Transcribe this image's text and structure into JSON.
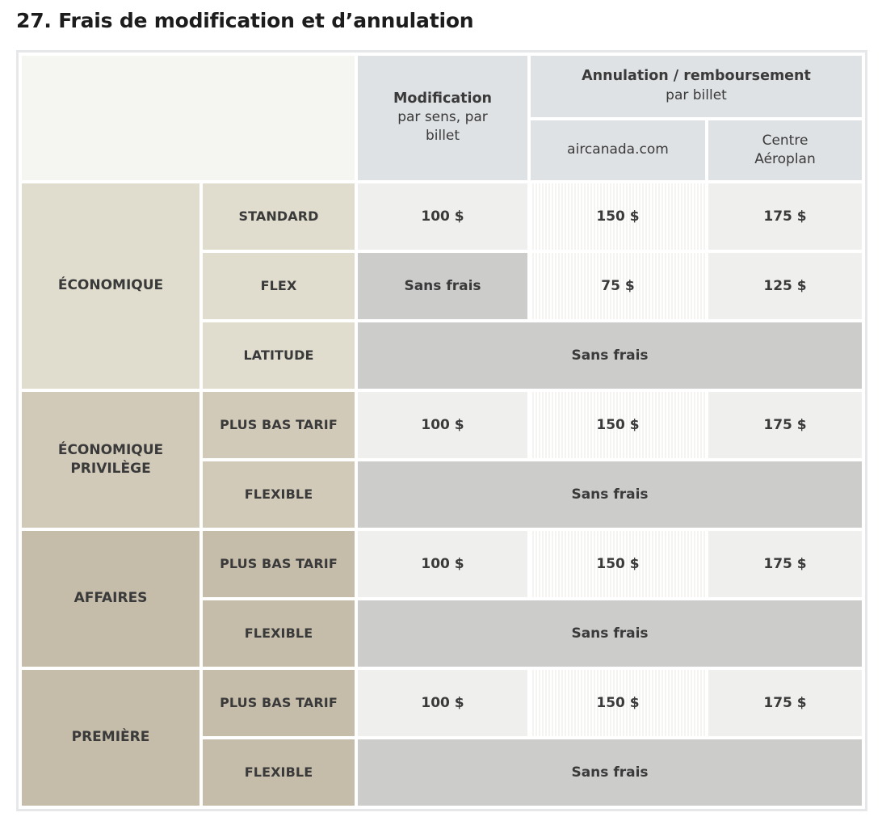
{
  "page": {
    "title": "27. Frais de modification et d’annulation"
  },
  "table": {
    "header": {
      "modification_title": "Modification",
      "modification_subtitle": "par sens, par billet",
      "annulation_title": "Annulation / remboursement",
      "annulation_subtitle": "par billet",
      "col_aircanada": "aircanada.com",
      "col_centre": "Centre Aéroplan"
    },
    "groups": [
      {
        "label": "ÉCONOMIQUE",
        "rows": [
          {
            "fare": "STANDARD",
            "modification": "100 $",
            "aircanada": "150 $",
            "centre": "175 $"
          },
          {
            "fare": "FLEX",
            "modification": "Sans frais",
            "aircanada": "75 $",
            "centre": "125 $"
          },
          {
            "fare": "LATITUDE",
            "all": "Sans frais"
          }
        ]
      },
      {
        "label": "ÉCONOMIQUE PRIVILÈGE",
        "rows": [
          {
            "fare": "PLUS BAS TARIF",
            "modification": "100 $",
            "aircanada": "150 $",
            "centre": "175 $"
          },
          {
            "fare": "FLEXIBLE",
            "all": "Sans frais"
          }
        ]
      },
      {
        "label": "AFFAIRES",
        "rows": [
          {
            "fare": "PLUS BAS TARIF",
            "modification": "100 $",
            "aircanada": "150 $",
            "centre": "175 $"
          },
          {
            "fare": "FLEXIBLE",
            "all": "Sans frais"
          }
        ]
      },
      {
        "label": "PREMIÈRE",
        "rows": [
          {
            "fare": "PLUS BAS TARIF",
            "modification": "100 $",
            "aircanada": "150 $",
            "centre": "175 $"
          },
          {
            "fare": "FLEXIBLE",
            "all": "Sans frais"
          }
        ]
      }
    ],
    "colors": {
      "header_bg": "#dfe2e4",
      "corner_bg": "#f5f5f2",
      "economique_bg": "#e0dcce",
      "economique_privilege_bg": "#d2cab9",
      "affaires_premiere_bg": "#c5bcaa",
      "fee_cell_bg": "#efefed",
      "aircanada_stripe_bg": "#f5f4f1",
      "no_fee_bg": "#cccccb",
      "table_border": "#e5e7e9",
      "text": "#3a3a3a",
      "title_text": "#1c1c1c"
    }
  }
}
